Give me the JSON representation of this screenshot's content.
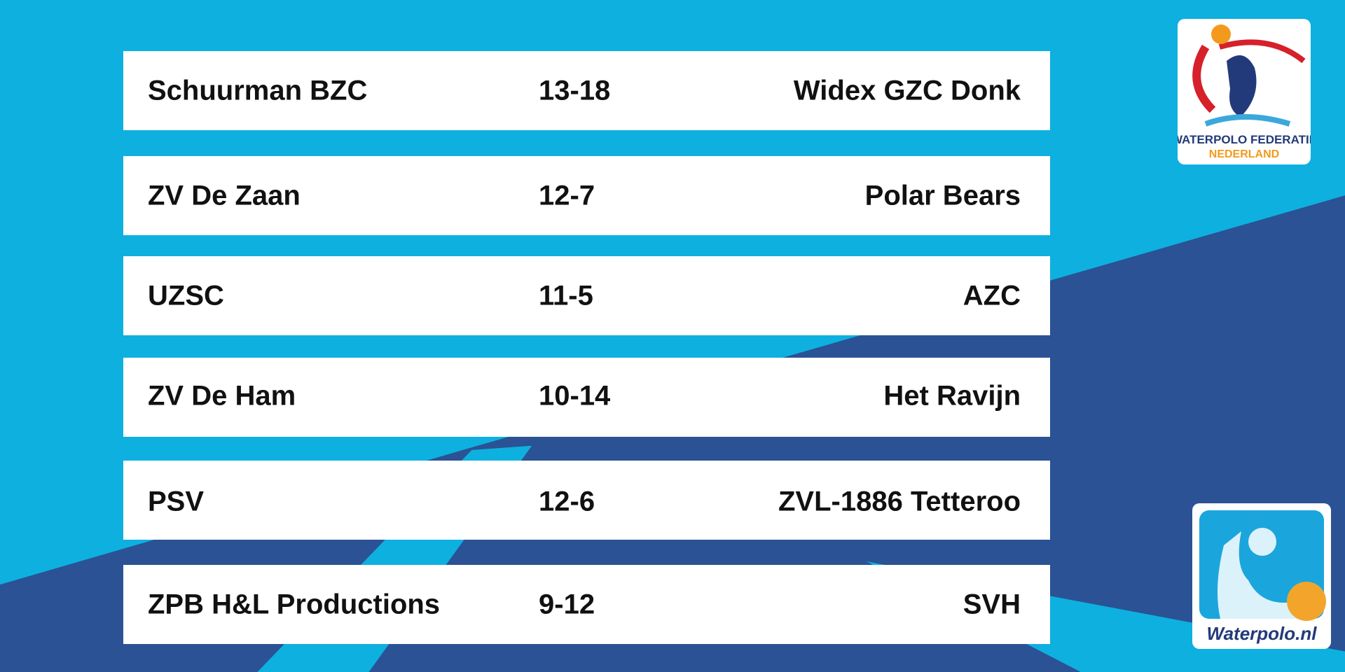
{
  "matches": [
    {
      "home": "Schuurman BZC",
      "score": "13-18",
      "away": "Widex GZC Donk"
    },
    {
      "home": "ZV De Zaan",
      "score": "12-7",
      "away": "Polar Bears"
    },
    {
      "home": "UZSC",
      "score": "11-5",
      "away": "AZC"
    },
    {
      "home": "ZV De Ham",
      "score": "10-14",
      "away": "Het Ravijn"
    },
    {
      "home": "PSV",
      "score": "12-6",
      "away": "ZVL-1886 Tetteroo"
    },
    {
      "home": "ZPB H&L Productions",
      "score": "9-12",
      "away": "SVH"
    }
  ],
  "logos": {
    "federation_line1": "WATERPOLO FEDERATIE",
    "federation_line2": "NEDERLAND",
    "site": "Waterpolo.nl"
  }
}
